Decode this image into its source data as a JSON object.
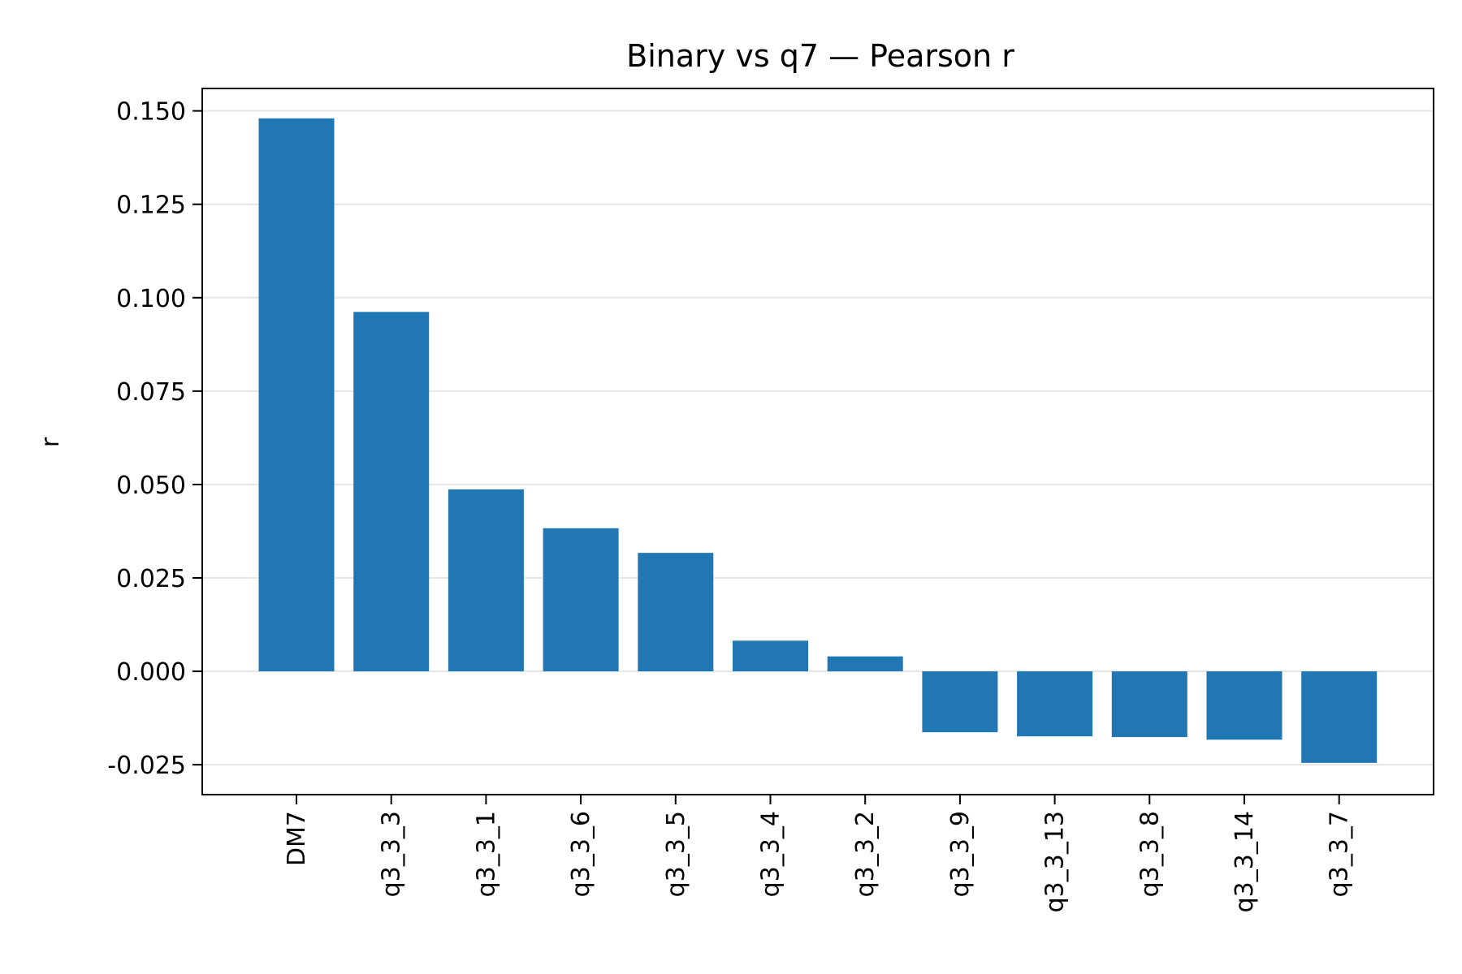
{
  "chart_data": {
    "type": "bar",
    "title": "Binary vs q7 — Pearson r",
    "xlabel": "",
    "ylabel": "r",
    "categories": [
      "DM7",
      "q3_3_3",
      "q3_3_1",
      "q3_3_6",
      "q3_3_5",
      "q3_3_4",
      "q3_3_2",
      "q3_3_9",
      "q3_3_13",
      "q3_3_8",
      "q3_3_14",
      "q3_3_7"
    ],
    "values": [
      0.148,
      0.0962,
      0.0487,
      0.0383,
      0.0317,
      0.0082,
      0.004,
      -0.0163,
      -0.0174,
      -0.0176,
      -0.0183,
      -0.0245
    ],
    "ylim": [
      -0.033,
      0.156
    ],
    "yticks": [
      -0.025,
      0.0,
      0.025,
      0.05,
      0.075,
      0.1,
      0.125,
      0.15
    ],
    "ytick_labels": [
      "-0.025",
      "0.000",
      "0.025",
      "0.050",
      "0.075",
      "0.100",
      "0.125",
      "0.150"
    ],
    "grid": "horizontal",
    "legend": "none",
    "colors": {
      "bar": "#2077b4",
      "grid": "#e6e6e6",
      "axis": "#000000"
    }
  }
}
